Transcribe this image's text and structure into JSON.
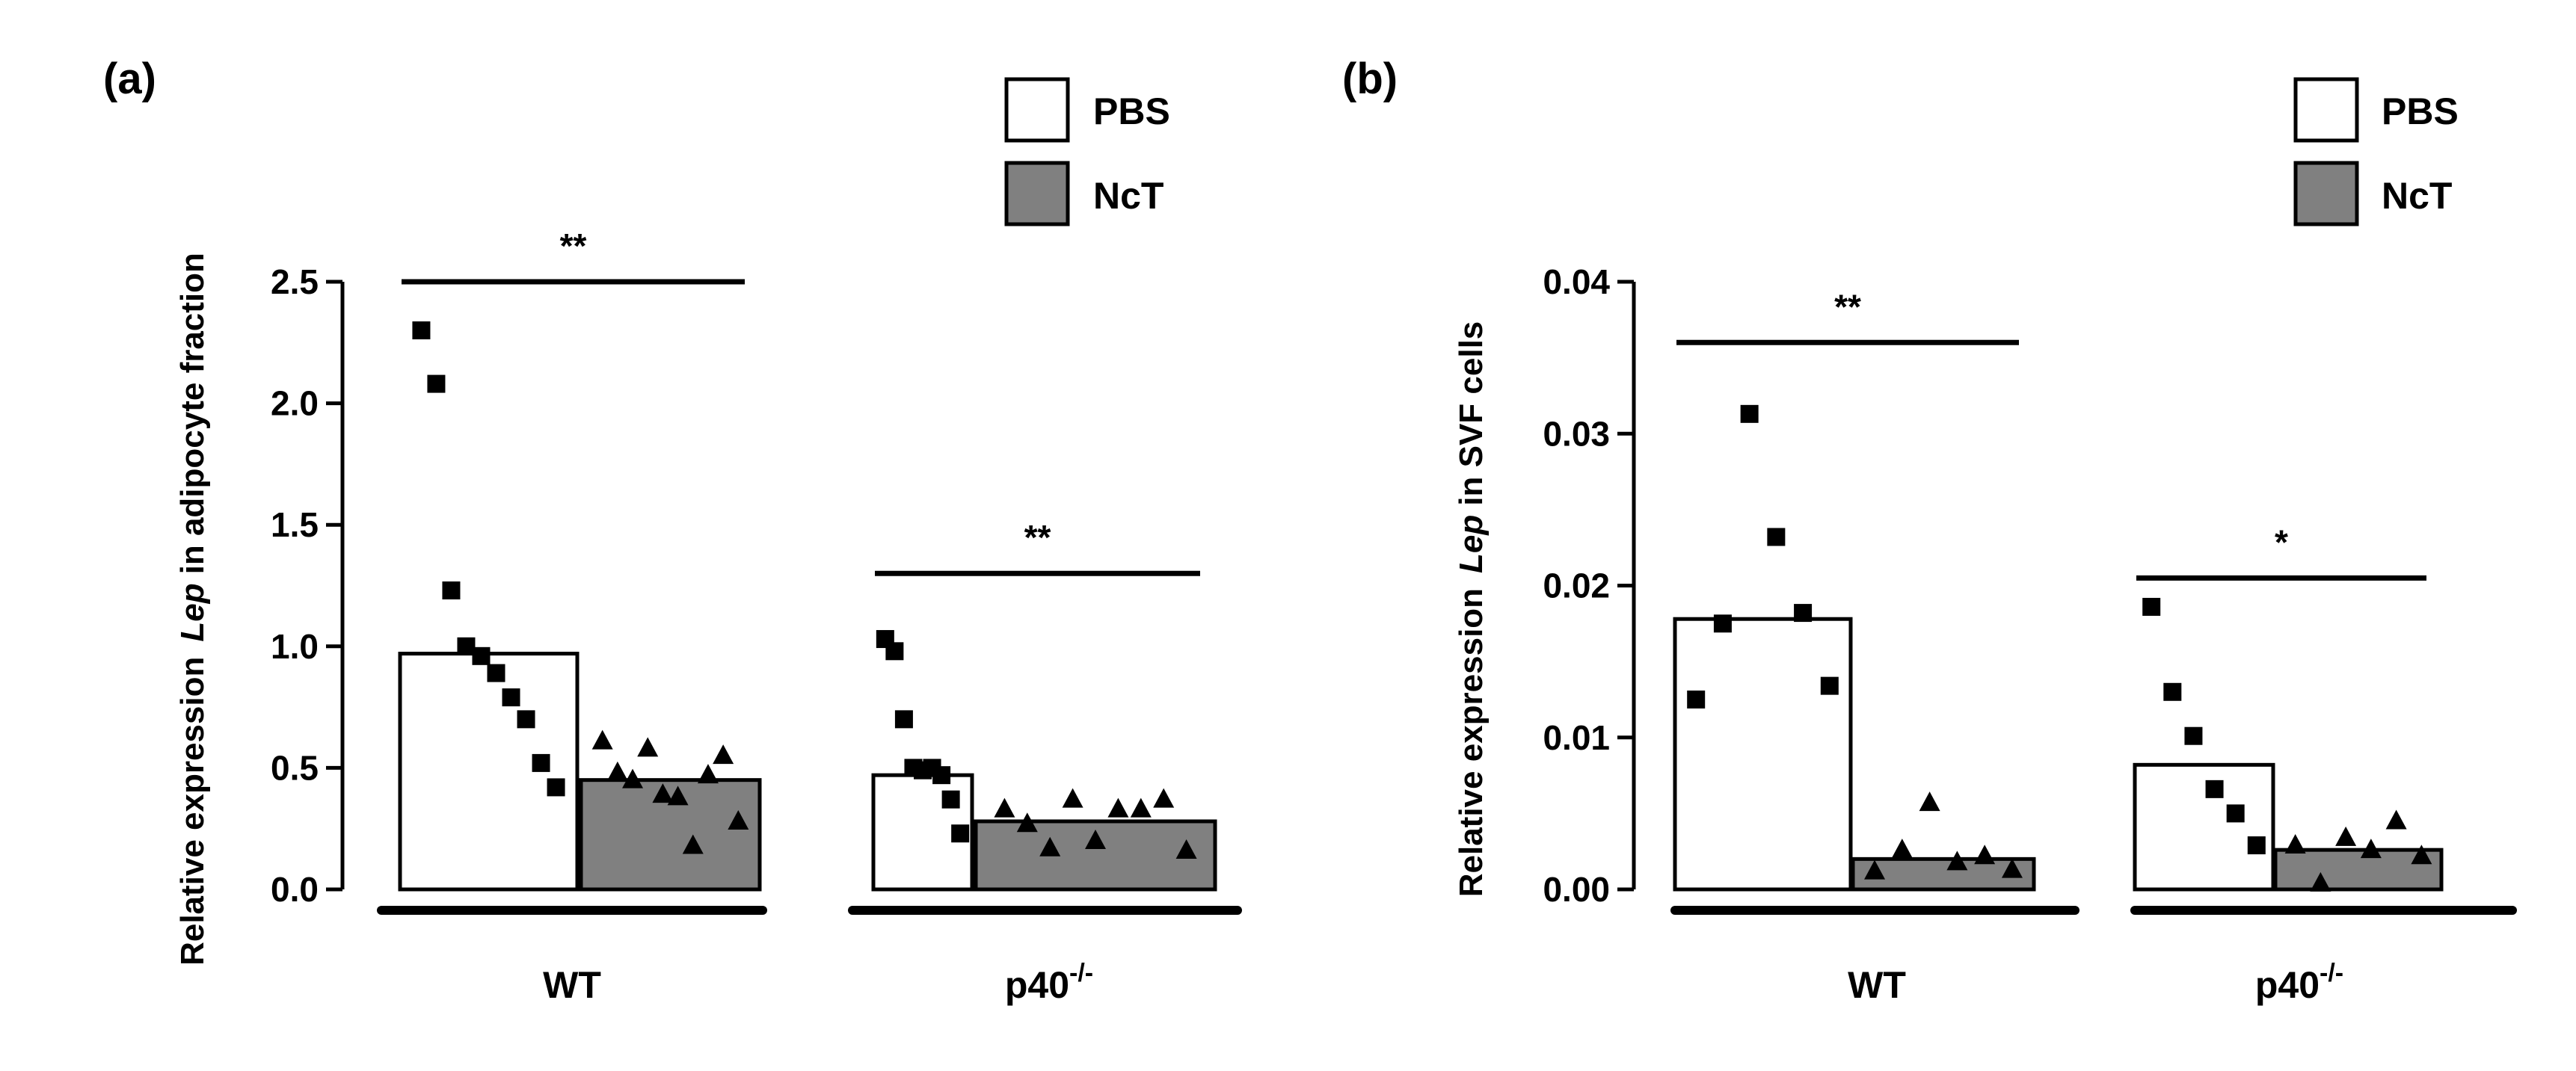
{
  "figure_colors": {
    "pbs_fill": "#ffffff",
    "nct_fill": "#808080",
    "ink": "#000000"
  },
  "chart_data": [
    {
      "type": "bar",
      "panel_label": "(a)",
      "ylabel_pre": "Relative expression",
      "ylabel_gene": "Lep",
      "ylabel_post": "in adipocyte fraction",
      "ylim": [
        0,
        2.5
      ],
      "yticks": [
        "0.0",
        "0.5",
        "1.0",
        "1.5",
        "2.0",
        "2.5"
      ],
      "groups": [
        "WT",
        "p40-/-"
      ],
      "group_labels": [
        {
          "text": "WT",
          "sup": ""
        },
        {
          "text": "p40",
          "sup": "-/-"
        }
      ],
      "legend": [
        "PBS",
        "NcT"
      ],
      "series": [
        {
          "name": "PBS",
          "values": [
            0.97,
            0.47
          ],
          "points": [
            [
              2.3,
              2.08,
              1.23,
              1.0,
              0.96,
              0.89,
              0.79,
              0.7,
              0.52,
              0.42
            ],
            [
              1.03,
              0.98,
              0.7,
              0.5,
              0.49,
              0.5,
              0.47,
              0.37,
              0.23
            ]
          ]
        },
        {
          "name": "NcT",
          "values": [
            0.45,
            0.28
          ],
          "points": [
            [
              0.61,
              0.48,
              0.45,
              0.58,
              0.39,
              0.38,
              0.18,
              0.47,
              0.55,
              0.28
            ],
            [
              0.33,
              0.27,
              0.17,
              0.37,
              0.2,
              0.33,
              0.33,
              0.37,
              0.16
            ]
          ]
        }
      ],
      "significance": [
        {
          "group": 0,
          "label": "**",
          "y": 2.5
        },
        {
          "group": 1,
          "label": "**",
          "y": 1.3
        }
      ]
    },
    {
      "type": "bar",
      "panel_label": "(b)",
      "ylabel_pre": "Relative expression",
      "ylabel_gene": "Lep",
      "ylabel_post": "in SVF cells",
      "ylim": [
        0,
        0.04
      ],
      "yticks": [
        "0.00",
        "0.01",
        "0.02",
        "0.03",
        "0.04"
      ],
      "groups": [
        "WT",
        "p40-/-"
      ],
      "group_labels": [
        {
          "text": "WT",
          "sup": ""
        },
        {
          "text": "p40",
          "sup": "-/-"
        }
      ],
      "legend": [
        "PBS",
        "NcT"
      ],
      "series": [
        {
          "name": "PBS",
          "values": [
            0.0178,
            0.0082
          ],
          "points": [
            [
              0.0125,
              0.0175,
              0.0313,
              0.0232,
              0.0182,
              0.0134
            ],
            [
              0.0186,
              0.013,
              0.0101,
              0.0066,
              0.005,
              0.0029
            ]
          ]
        },
        {
          "name": "NcT",
          "values": [
            0.002,
            0.0026
          ],
          "points": [
            [
              0.0012,
              0.0026,
              0.0057,
              0.0018,
              0.0022,
              0.0013
            ],
            [
              0.0029,
              0.0004,
              0.0034,
              0.0026,
              0.0045,
              0.0022
            ]
          ]
        }
      ],
      "significance": [
        {
          "group": 0,
          "label": "**",
          "y": 0.036
        },
        {
          "group": 1,
          "label": "*",
          "y": 0.0205
        }
      ]
    }
  ]
}
